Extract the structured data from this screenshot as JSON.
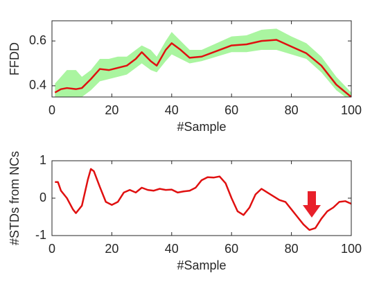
{
  "chart_data": [
    {
      "type": "line",
      "xlabel": "#Sample",
      "ylabel": "FFDD",
      "x": [
        1,
        3,
        5,
        8,
        10,
        13,
        16,
        19,
        22,
        25,
        28,
        30,
        33,
        35,
        38,
        40,
        43,
        46,
        50,
        55,
        60,
        65,
        70,
        75,
        80,
        85,
        90,
        95,
        100
      ],
      "values": [
        0.37,
        0.385,
        0.39,
        0.385,
        0.39,
        0.43,
        0.475,
        0.47,
        0.48,
        0.49,
        0.52,
        0.55,
        0.51,
        0.49,
        0.56,
        0.59,
        0.56,
        0.525,
        0.53,
        0.555,
        0.58,
        0.585,
        0.6,
        0.605,
        0.575,
        0.545,
        0.49,
        0.405,
        0.35
      ],
      "color": "#e01010",
      "band": {
        "color": "#aaf5a0",
        "lower": [
          0.32,
          0.34,
          0.35,
          0.34,
          0.35,
          0.38,
          0.42,
          0.43,
          0.44,
          0.45,
          0.48,
          0.5,
          0.47,
          0.46,
          0.51,
          0.54,
          0.52,
          0.5,
          0.51,
          0.53,
          0.55,
          0.55,
          0.56,
          0.56,
          0.54,
          0.52,
          0.46,
          0.38,
          0.33
        ],
        "upper": [
          0.41,
          0.44,
          0.47,
          0.47,
          0.44,
          0.47,
          0.52,
          0.52,
          0.53,
          0.53,
          0.56,
          0.58,
          0.56,
          0.53,
          0.6,
          0.64,
          0.6,
          0.56,
          0.56,
          0.59,
          0.62,
          0.625,
          0.65,
          0.655,
          0.62,
          0.59,
          0.53,
          0.44,
          0.37
        ]
      },
      "xlim": [
        0,
        100
      ],
      "xticks": [
        0,
        20,
        40,
        60,
        80,
        100
      ],
      "ylim": [
        0.35,
        0.69
      ],
      "yticks": [
        0.4,
        0.6
      ]
    },
    {
      "type": "line",
      "xlabel": "#Sample",
      "ylabel": "#STDs from NCs",
      "x": [
        1,
        2,
        3,
        5,
        7,
        8,
        10,
        12,
        13,
        14,
        16,
        18,
        20,
        22,
        24,
        26,
        28,
        30,
        32,
        34,
        36,
        38,
        40,
        42,
        44,
        46,
        48,
        50,
        52,
        54,
        56,
        58,
        60,
        62,
        64,
        66,
        68,
        70,
        72,
        74,
        76,
        78,
        80,
        82,
        84,
        86,
        88,
        90,
        92,
        94,
        96,
        98,
        100
      ],
      "values": [
        0.43,
        0.43,
        0.2,
        0,
        -0.3,
        -0.4,
        -0.2,
        0.5,
        0.78,
        0.72,
        0.3,
        -0.1,
        -0.18,
        -0.1,
        0.15,
        0.22,
        0.15,
        0.28,
        0.22,
        0.2,
        0.25,
        0.22,
        0.23,
        0.15,
        0.18,
        0.2,
        0.28,
        0.48,
        0.56,
        0.55,
        0.58,
        0.4,
        0,
        -0.35,
        -0.45,
        -0.25,
        0.1,
        0.25,
        0.15,
        0.05,
        -0.05,
        -0.1,
        -0.3,
        -0.5,
        -0.7,
        -0.85,
        -0.8,
        -0.55,
        -0.35,
        -0.25,
        -0.1,
        -0.08,
        -0.15
      ],
      "color": "#e01010",
      "xlim": [
        0,
        100
      ],
      "xticks": [
        0,
        20,
        40,
        60,
        80,
        100
      ],
      "ylim": [
        -1,
        1
      ],
      "yticks": [
        -1,
        0,
        1
      ]
    }
  ]
}
